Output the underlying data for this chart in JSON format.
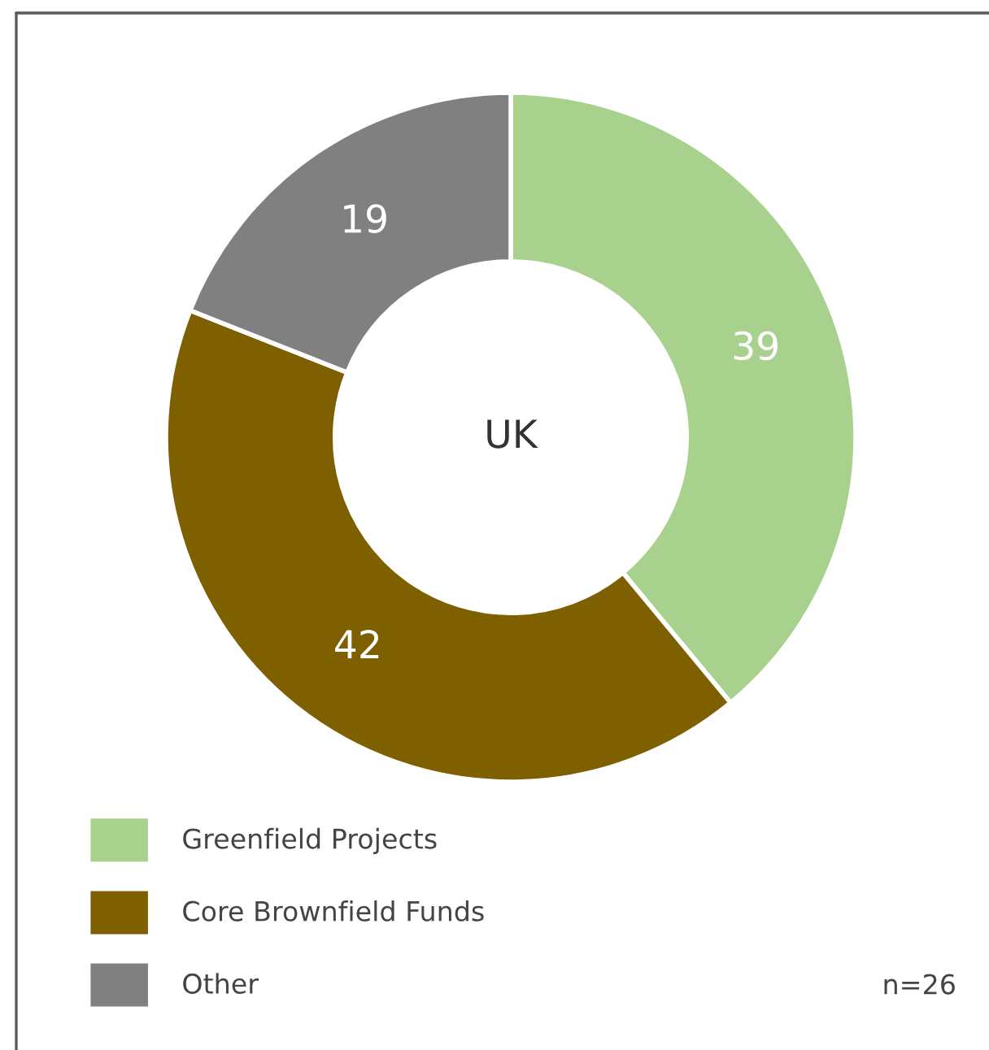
{
  "chart_data": {
    "type": "donut",
    "categories": [
      "Greenfield Projects",
      "Core Brownfield Funds",
      "Other"
    ],
    "values": [
      39,
      42,
      19
    ],
    "colors": [
      "#a9d18e",
      "#7f6000",
      "#808080"
    ],
    "data_labels": true,
    "legend": "bottom left",
    "annotations": [
      "UK",
      "n=26"
    ]
  }
}
